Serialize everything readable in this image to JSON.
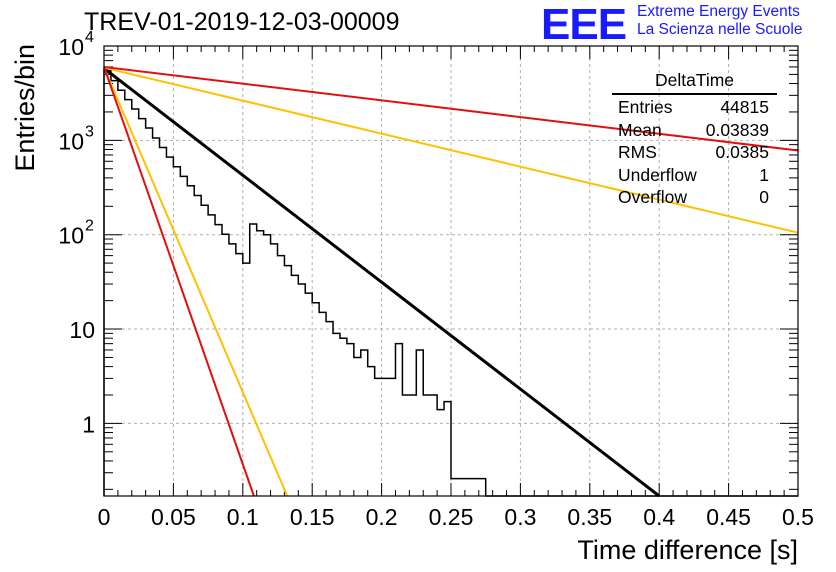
{
  "header": {
    "run_title": "TREV-01-2019-12-03-00009",
    "logo_mark": "EEE",
    "logo_line1": "Extreme Energy Events",
    "logo_line2": "La Scienza nelle Scuole"
  },
  "stats_box": {
    "title": "DeltaTime",
    "rows": [
      {
        "label": "Entries",
        "value": "44815"
      },
      {
        "label": "Mean",
        "value": "0.03839"
      },
      {
        "label": "RMS",
        "value": "0.0385"
      },
      {
        "label": "Underflow",
        "value": "1"
      },
      {
        "label": "Overflow",
        "value": "0"
      }
    ]
  },
  "chart_data": {
    "type": "line",
    "xlabel": "Time difference [s]",
    "ylabel": "Entries/bin",
    "xlim": [
      0,
      0.5
    ],
    "ylim": [
      0.17,
      10000
    ],
    "yscale": "log",
    "grid": true,
    "x_ticks": [
      0,
      0.05,
      0.1,
      0.15,
      0.2,
      0.25,
      0.3,
      0.35,
      0.4,
      0.45,
      0.5
    ],
    "x_tick_labels": [
      "0",
      "0.05",
      "0.1",
      "0.15",
      "0.2",
      "0.25",
      "0.3",
      "0.35",
      "0.4",
      "0.45",
      "0.5"
    ],
    "y_ticks": [
      1,
      10,
      100,
      1000,
      10000
    ],
    "y_tick_labels": [
      {
        "base": "1",
        "exp": ""
      },
      {
        "base": "10",
        "exp": ""
      },
      {
        "base": "10",
        "exp": "2"
      },
      {
        "base": "10",
        "exp": "3"
      },
      {
        "base": "10",
        "exp": "4"
      }
    ],
    "histogram": {
      "bin_width": 0.005,
      "counts": [
        5500,
        4300,
        3400,
        2700,
        2150,
        1700,
        1350,
        1060,
        840,
        665,
        525,
        415,
        330,
        260,
        205,
        162,
        128,
        101,
        80,
        63,
        50,
        130,
        110,
        100,
        80,
        60,
        47,
        37,
        30,
        24,
        19,
        15,
        12,
        9,
        8,
        7,
        5,
        6,
        4,
        3,
        3,
        3,
        7,
        2,
        2,
        6,
        2,
        2,
        1.4,
        1.7,
        0.26,
        0.26,
        0.26,
        0.26,
        0.26,
        0,
        0,
        0,
        0,
        0,
        0,
        0,
        0,
        0,
        0,
        0,
        0,
        0,
        0,
        0,
        0,
        0,
        0,
        0,
        0,
        0,
        0,
        0,
        0,
        0,
        0,
        0,
        0,
        0,
        0,
        0,
        0,
        0,
        0,
        0,
        0,
        0,
        0,
        0,
        0,
        0,
        0,
        0,
        0,
        0
      ]
    },
    "series": [
      {
        "color": "#000000",
        "x": [
          0,
          0.4
        ],
        "y": [
          5800,
          0.17
        ]
      },
      {
        "color": "#ffc000",
        "x": [
          0,
          0.5
        ],
        "y": [
          5900,
          105
        ]
      },
      {
        "color": "#ffc000",
        "x": [
          0,
          0.132
        ],
        "y": [
          5900,
          0.17
        ]
      },
      {
        "color": "#e01010",
        "x": [
          0,
          0.5
        ],
        "y": [
          6000,
          780
        ]
      },
      {
        "color": "#e01010",
        "x": [
          0,
          0.108
        ],
        "y": [
          6000,
          0.17
        ]
      }
    ]
  }
}
